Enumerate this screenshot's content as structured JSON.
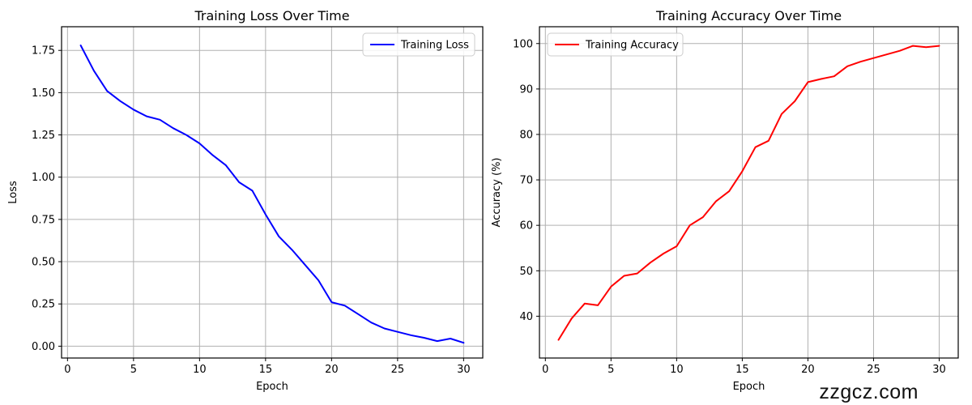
{
  "watermark": "zzgcz.com",
  "colors": {
    "loss_line": "#0000ff",
    "accuracy_line": "#ff0000",
    "grid": "#b0b0b0",
    "axis": "#000000",
    "text": "#000000",
    "legend_border": "#cccccc",
    "legend_background": "#ffffff"
  },
  "chart_data": [
    {
      "type": "line",
      "title": "Training Loss Over Time",
      "xlabel": "Epoch",
      "ylabel": "Loss",
      "legend": {
        "label": "Training Loss",
        "position": "upper-right"
      },
      "line_color": "#0000ff",
      "grid": true,
      "x": [
        1,
        2,
        3,
        4,
        5,
        6,
        7,
        8,
        9,
        10,
        11,
        12,
        13,
        14,
        15,
        16,
        17,
        18,
        19,
        20,
        21,
        22,
        23,
        24,
        25,
        26,
        27,
        28,
        29,
        30
      ],
      "y": [
        1.78,
        1.63,
        1.51,
        1.45,
        1.4,
        1.36,
        1.34,
        1.29,
        1.25,
        1.2,
        1.13,
        1.07,
        0.97,
        0.92,
        0.78,
        0.65,
        0.57,
        0.48,
        0.39,
        0.26,
        0.24,
        0.19,
        0.14,
        0.105,
        0.085,
        0.065,
        0.05,
        0.03,
        0.045,
        0.02
      ],
      "xlim": [
        -0.45,
        31.45
      ],
      "ylim": [
        -0.07,
        1.89
      ],
      "xticks": [
        0,
        5,
        10,
        15,
        20,
        25,
        30
      ],
      "xtick_labels": [
        "0",
        "5",
        "10",
        "15",
        "20",
        "25",
        "30"
      ],
      "yticks": [
        0,
        0.25,
        0.5,
        0.75,
        1.0,
        1.25,
        1.5,
        1.75
      ],
      "ytick_labels": [
        "0.00",
        "0.25",
        "0.50",
        "0.75",
        "1.00",
        "1.25",
        "1.50",
        "1.75"
      ]
    },
    {
      "type": "line",
      "title": "Training Accuracy Over Time",
      "xlabel": "Epoch",
      "ylabel": "Accuracy (%)",
      "legend": {
        "label": "Training Accuracy",
        "position": "upper-left"
      },
      "line_color": "#ff0000",
      "grid": true,
      "x": [
        1,
        2,
        3,
        4,
        5,
        6,
        7,
        8,
        9,
        10,
        11,
        12,
        13,
        14,
        15,
        16,
        17,
        18,
        19,
        20,
        21,
        22,
        23,
        24,
        25,
        26,
        27,
        28,
        29,
        30
      ],
      "y": [
        34.8,
        39.5,
        42.8,
        42.4,
        46.5,
        48.9,
        49.4,
        51.8,
        53.8,
        55.4,
        60.0,
        61.8,
        65.3,
        67.5,
        71.9,
        77.2,
        78.6,
        84.5,
        87.3,
        91.5,
        92.2,
        92.8,
        95.0,
        96.0,
        96.8,
        97.6,
        98.4,
        99.5,
        99.2,
        99.5
      ],
      "xlim": [
        -0.45,
        31.45
      ],
      "ylim": [
        30.8,
        103.7
      ],
      "xticks": [
        0,
        5,
        10,
        15,
        20,
        25,
        30
      ],
      "xtick_labels": [
        "0",
        "5",
        "10",
        "15",
        "20",
        "25",
        "30"
      ],
      "yticks": [
        40,
        50,
        60,
        70,
        80,
        90,
        100
      ],
      "ytick_labels": [
        "40",
        "50",
        "60",
        "70",
        "80",
        "90",
        "100"
      ]
    }
  ]
}
